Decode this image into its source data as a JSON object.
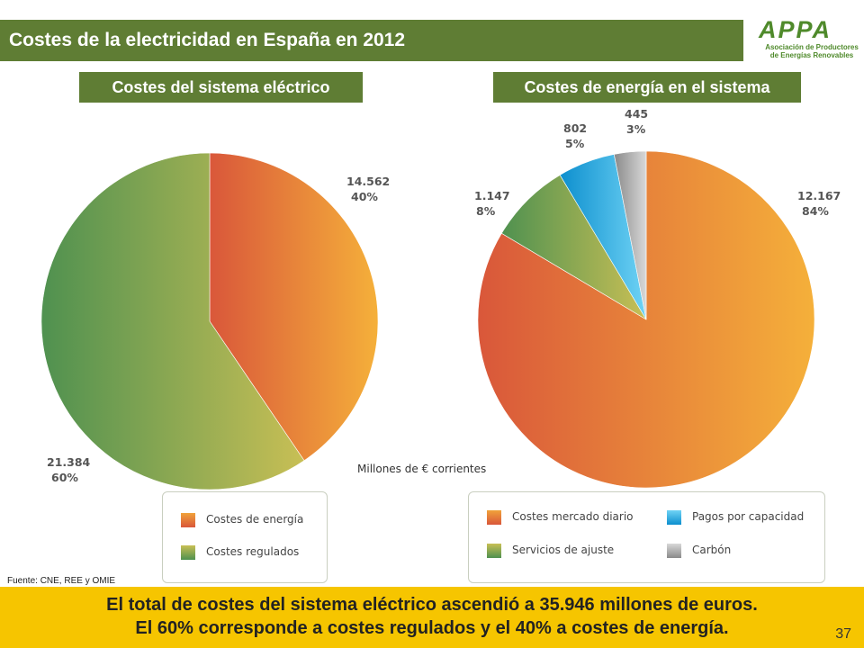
{
  "slide": {
    "title": "Costes de la electricidad en España en 2012",
    "logo": {
      "wordmark": "APPA",
      "line1": "Asociación de Productores",
      "line2": "de Energías Renovables"
    },
    "source": "Fuente: CNE, REE y OMIE",
    "conclusion_line1": "El total de costes del sistema eléctrico ascendió a 35.946 millones de euros.",
    "conclusion_line2": "El 60% corresponde a costes regulados y el 40% a costes de energía.",
    "page_number": "37",
    "units_note": "Millones de € corrientes"
  },
  "chart_data": [
    {
      "type": "pie",
      "title": "Costes del sistema eléctrico",
      "slices": [
        {
          "name": "Costes de energía",
          "value_label": "14.562",
          "value": 14562,
          "percent_label": "40%",
          "percent": 40,
          "colors": [
            "#d9573a",
            "#f5b03a"
          ]
        },
        {
          "name": "Costes regulados",
          "value_label": "21.384",
          "value": 21384,
          "percent_label": "60%",
          "percent": 60,
          "colors": [
            "#4f9150",
            "#c8bf55"
          ]
        }
      ],
      "legend": [
        "Costes de energía",
        "Costes regulados"
      ]
    },
    {
      "type": "pie",
      "title": "Costes de energía en el sistema",
      "slices": [
        {
          "name": "Costes mercado diario",
          "value_label": "12.167",
          "value": 12167,
          "percent_label": "84%",
          "percent": 84,
          "colors": [
            "#d9573a",
            "#f5b03a"
          ]
        },
        {
          "name": "Servicios de ajuste",
          "value_label": "1.147",
          "value": 1147,
          "percent_label": "8%",
          "percent": 8,
          "colors": [
            "#4f9150",
            "#c8bf55"
          ]
        },
        {
          "name": "Pagos por capacidad",
          "value_label": "802",
          "value": 802,
          "percent_label": "5%",
          "percent": 5,
          "colors": [
            "#0d8fce",
            "#6fd3f5"
          ]
        },
        {
          "name": "Carbón",
          "value_label": "445",
          "value": 445,
          "percent_label": "3%",
          "percent": 3,
          "colors": [
            "#8a8a8a",
            "#d8d8d8"
          ]
        }
      ],
      "legend": [
        "Costes mercado diario",
        "Pagos por capacidad",
        "Servicios de ajuste",
        "Carbón"
      ]
    }
  ]
}
